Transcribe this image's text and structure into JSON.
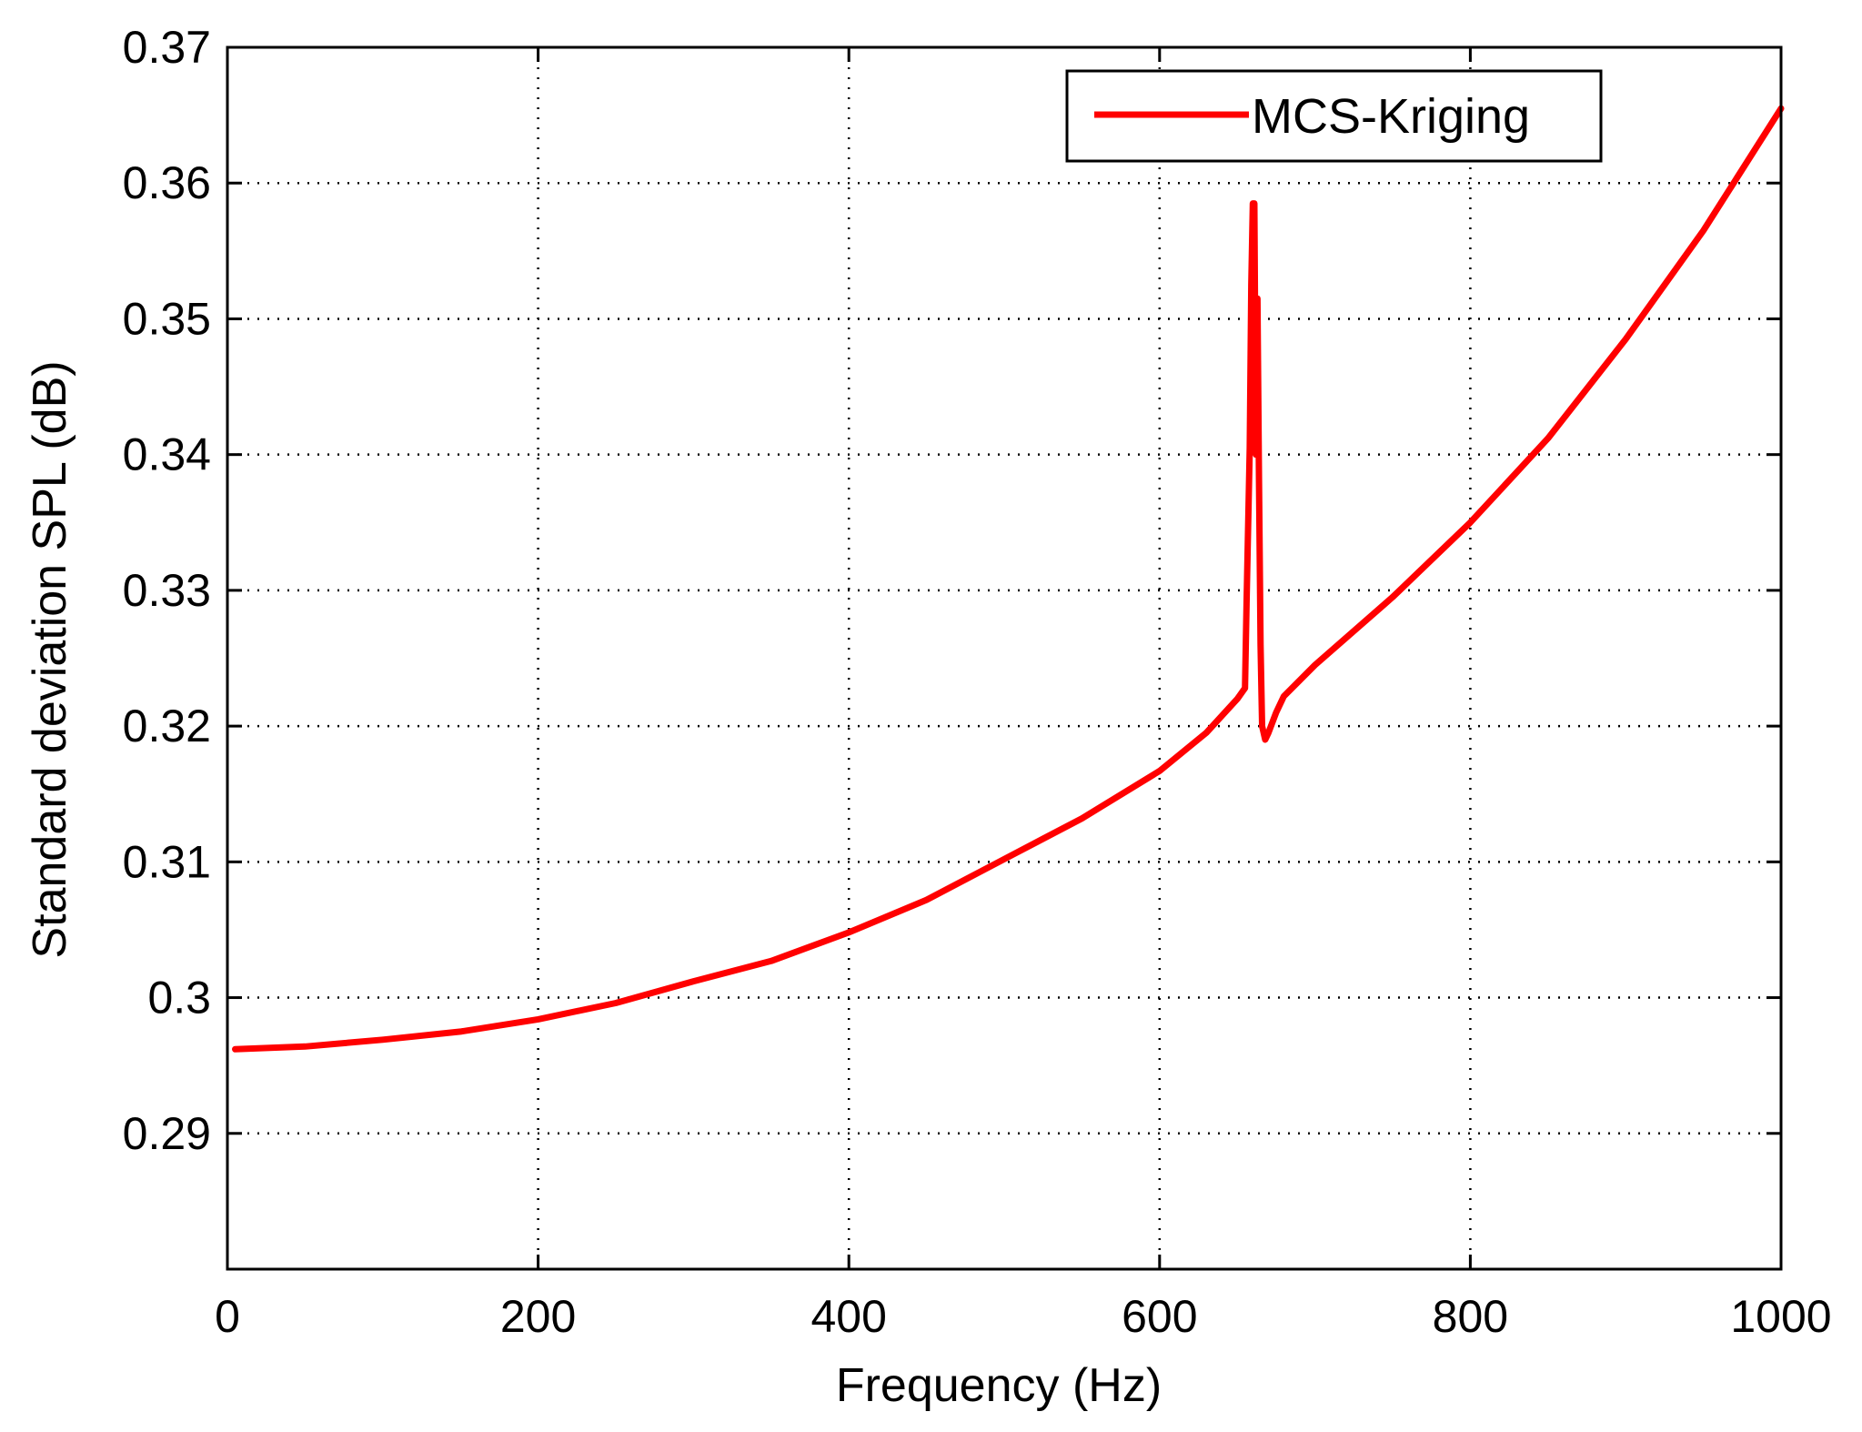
{
  "chart_data": {
    "type": "line",
    "title": "",
    "xlabel": "Frequency (Hz)",
    "ylabel": "Standard deviation SPL (dB)",
    "xlim": [
      0,
      1000
    ],
    "ylim": [
      0.28,
      0.37
    ],
    "x_ticks": [
      0,
      200,
      400,
      600,
      800,
      1000
    ],
    "y_ticks": [
      0.29,
      0.3,
      0.31,
      0.32,
      0.33,
      0.34,
      0.35,
      0.36,
      0.37
    ],
    "x_tick_labels": [
      "0",
      "200",
      "400",
      "600",
      "800",
      "1000"
    ],
    "y_tick_labels": [
      "0.29",
      "0.3",
      "0.31",
      "0.32",
      "0.33",
      "0.34",
      "0.35",
      "0.36",
      "0.37"
    ],
    "grid": true,
    "grid_style": "dotted",
    "legend_position": "top-right",
    "series": [
      {
        "name": "MCS-Kriging",
        "color": "#ff0000",
        "x": [
          5,
          50,
          100,
          150,
          200,
          250,
          300,
          350,
          400,
          450,
          500,
          550,
          600,
          630,
          650,
          655,
          656,
          658,
          659,
          660,
          661,
          662,
          663,
          664,
          665,
          666,
          668,
          670,
          675,
          680,
          700,
          750,
          800,
          850,
          900,
          950,
          1000
        ],
        "y": [
          0.2962,
          0.2964,
          0.2969,
          0.2975,
          0.2984,
          0.2996,
          0.3012,
          0.3027,
          0.3048,
          0.3072,
          0.3102,
          0.3132,
          0.3167,
          0.3195,
          0.322,
          0.3228,
          0.329,
          0.3405,
          0.3525,
          0.3585,
          0.3585,
          0.34,
          0.3515,
          0.338,
          0.326,
          0.32,
          0.319,
          0.3195,
          0.321,
          0.3222,
          0.3245,
          0.3295,
          0.335,
          0.3412,
          0.3485,
          0.3565,
          0.3655
        ]
      }
    ]
  }
}
